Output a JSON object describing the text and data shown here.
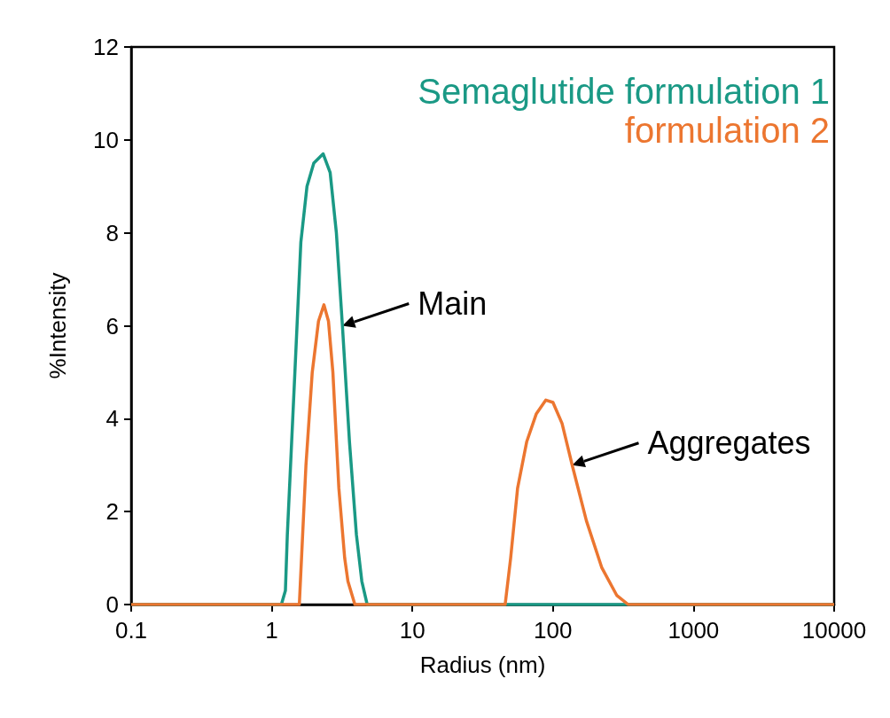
{
  "chart_data": {
    "type": "line",
    "xlabel": "Radius (nm)",
    "ylabel": "%Intensity",
    "log": "x",
    "xlim": [
      0.1,
      10000
    ],
    "xticks": [
      0.1,
      1,
      10,
      100,
      1000,
      10000
    ],
    "ylim": [
      0,
      12
    ],
    "yticks": [
      0,
      2,
      4,
      6,
      8,
      10,
      12
    ],
    "grid": false,
    "legend": "top right",
    "marker": "none",
    "line_style": "solid",
    "series": [
      {
        "name": "Semaglutide formulation 1",
        "color": "#1a9985",
        "x": [
          0.1,
          1.17,
          1.25,
          1.29,
          1.46,
          1.61,
          1.78,
          1.99,
          2.32,
          2.6,
          2.88,
          3.18,
          3.57,
          4.0,
          4.37,
          4.77,
          10000
        ],
        "values": [
          0,
          0,
          0.3,
          1.5,
          5,
          7.8,
          9.0,
          9.5,
          9.7,
          9.3,
          8,
          6,
          3.5,
          1.5,
          0.5,
          0,
          0
        ]
      },
      {
        "name": "formulation 2",
        "color": "#ec7630",
        "x": [
          0.1,
          1.57,
          1.75,
          1.94,
          2.15,
          2.35,
          2.53,
          2.72,
          3.0,
          3.3,
          3.48,
          3.9,
          45.7,
          50,
          56,
          65,
          76,
          89,
          100,
          116,
          137,
          173,
          222,
          284,
          343,
          10000
        ],
        "values": [
          0,
          0,
          3,
          5,
          6.1,
          6.45,
          6.1,
          5.0,
          2.5,
          1.0,
          0.5,
          0,
          0,
          1,
          2.5,
          3.5,
          4.1,
          4.4,
          4.35,
          3.9,
          3.0,
          1.8,
          0.8,
          0.2,
          0,
          0
        ]
      }
    ],
    "annotations": [
      {
        "text": "Main",
        "x": 3.18,
        "y": 6
      },
      {
        "text": "Aggregates",
        "x": 137,
        "y": 3.0
      }
    ]
  }
}
